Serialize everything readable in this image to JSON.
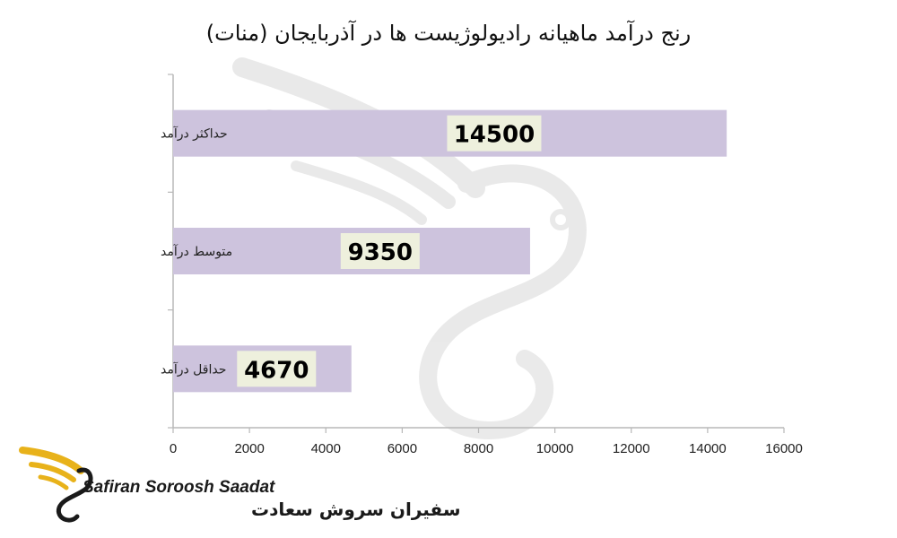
{
  "chart_data": {
    "type": "bar",
    "orientation": "horizontal",
    "title": "رنج درآمد ماهیانه رادیولوژیست ها در آذربایجان (منات)",
    "categories": [
      "حداکثر درآمد",
      "متوسط درآمد",
      "حداقل درآمد"
    ],
    "values": [
      14500,
      9350,
      4670
    ],
    "data_labels": [
      "14500",
      "9350",
      "4670"
    ],
    "xlim": [
      0,
      16000
    ],
    "x_ticks": [
      0,
      2000,
      4000,
      6000,
      8000,
      10000,
      12000,
      14000,
      16000
    ],
    "x_tick_labels": [
      "0",
      "2000",
      "4000",
      "6000",
      "8000",
      "10000",
      "12000",
      "14000",
      "16000"
    ],
    "grid": false,
    "legend": "none",
    "colors": {
      "bar": "#cdc3dd",
      "label_box": "#eef0dd",
      "axis": "#b8b8b8",
      "logo_gold": "#e8b21a"
    }
  },
  "watermark": {
    "icon": "swan-s-logo-watermark"
  },
  "logo": {
    "latin_text": "Safiran Soroosh Saadat",
    "farsi_text": "سفیران سروش سعادت",
    "icon": "golden-swan-logo-icon"
  }
}
